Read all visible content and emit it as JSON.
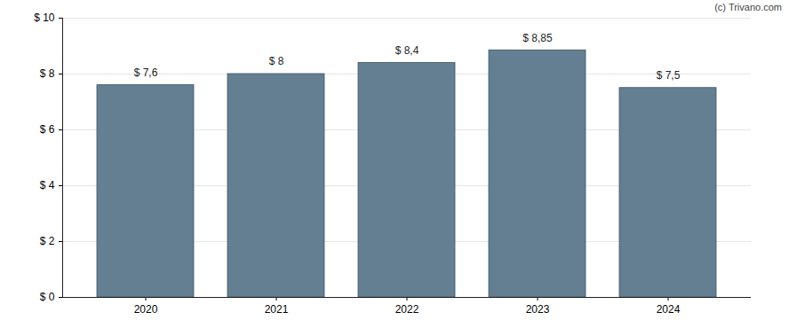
{
  "chart_data": {
    "type": "bar",
    "caption": "(c) Trivano.com",
    "categories": [
      "2020",
      "2021",
      "2022",
      "2023",
      "2024"
    ],
    "values": [
      7.6,
      8,
      8.4,
      8.85,
      7.5
    ],
    "value_labels": [
      "$ 7,6",
      "$ 8",
      "$ 8,4",
      "$ 8,85",
      "$ 7,5"
    ],
    "data_labels": true,
    "color": "#647f91",
    "ylim": [
      0,
      10
    ],
    "yticks": [
      {
        "value": 0,
        "label": "$ 0"
      },
      {
        "value": 2,
        "label": "$ 2"
      },
      {
        "value": 4,
        "label": "$ 4"
      },
      {
        "value": 6,
        "label": "$ 6"
      },
      {
        "value": 8,
        "label": "$ 8"
      },
      {
        "value": 10,
        "label": "$ 10"
      }
    ],
    "grid": true
  }
}
